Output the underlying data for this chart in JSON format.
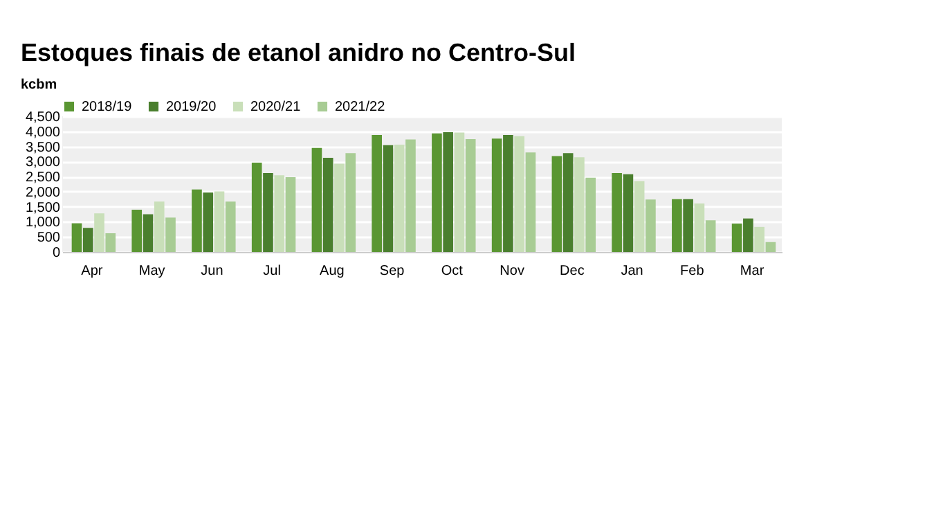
{
  "chart_data": {
    "type": "bar",
    "title": "Estoques finais de etanol anidro no Centro-Sul",
    "ylabel": "kcbm",
    "categories": [
      "Apr",
      "May",
      "Jun",
      "Jul",
      "Aug",
      "Sep",
      "Oct",
      "Nov",
      "Dec",
      "Jan",
      "Feb",
      "Mar"
    ],
    "series": [
      {
        "name": "2018/19",
        "color": "#5a9632",
        "values": [
          950,
          1400,
          2070,
          2960,
          3450,
          3880,
          3930,
          3760,
          3180,
          2620,
          1750,
          940
        ]
      },
      {
        "name": "2019/20",
        "color": "#4a7f2e",
        "values": [
          800,
          1250,
          1970,
          2620,
          3120,
          3540,
          3970,
          3880,
          3280,
          2580,
          1750,
          1110
        ]
      },
      {
        "name": "2020/21",
        "color": "#c9dfb9",
        "values": [
          1280,
          1670,
          2010,
          2540,
          2930,
          3560,
          3960,
          3840,
          3140,
          2350,
          1610,
          830
        ]
      },
      {
        "name": "2021/22",
        "color": "#a8cc94",
        "values": [
          620,
          1140,
          1670,
          2480,
          3280,
          3730,
          3740,
          3300,
          2460,
          1740,
          1050,
          330
        ]
      }
    ],
    "ylim": [
      0,
      4500
    ],
    "yticks": [
      {
        "value": 0,
        "label": "0"
      },
      {
        "value": 500,
        "label": "500"
      },
      {
        "value": 1000,
        "label": "1,000"
      },
      {
        "value": 1500,
        "label": "1,500"
      },
      {
        "value": 2000,
        "label": "2,000"
      },
      {
        "value": 2500,
        "label": "2,500"
      },
      {
        "value": 3000,
        "label": "3,000"
      },
      {
        "value": 3500,
        "label": "3,500"
      },
      {
        "value": 4000,
        "label": "4,000"
      },
      {
        "value": 4500,
        "label": "4,500"
      }
    ],
    "grid": "y",
    "legend": "top"
  }
}
